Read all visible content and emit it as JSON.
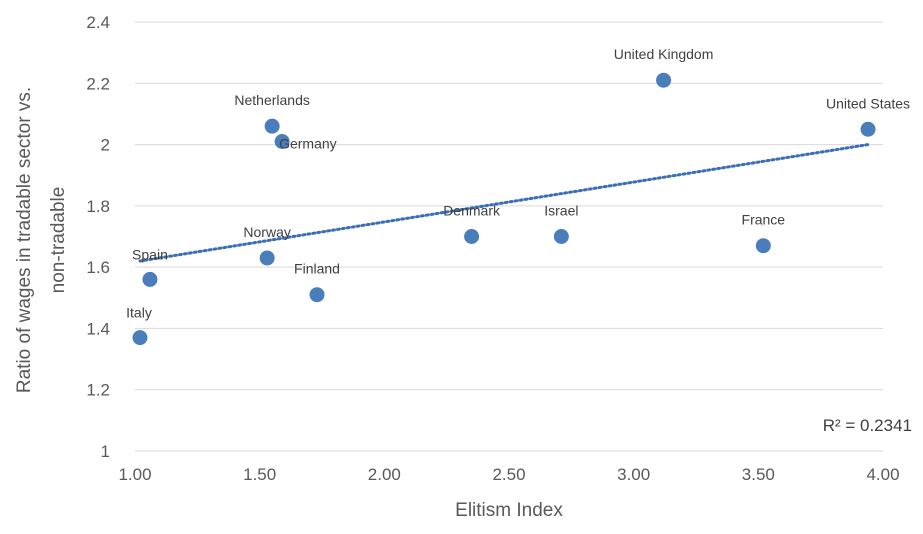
{
  "chart_data": {
    "type": "scatter",
    "xlabel": "Elitism Index",
    "ylabel": [
      "Ratio of wages in tradable sector vs.",
      "non-tradable"
    ],
    "xlim": [
      1.0,
      4.0
    ],
    "ylim": [
      1.0,
      2.4
    ],
    "xticks": [
      1.0,
      1.5,
      2.0,
      2.5,
      3.0,
      3.5,
      4.0
    ],
    "xtick_labels": [
      "1.00",
      "1.50",
      "2.00",
      "2.50",
      "3.00",
      "3.50",
      "4.00"
    ],
    "yticks": [
      1.0,
      1.2,
      1.4,
      1.6,
      1.8,
      2.0,
      2.2,
      2.4
    ],
    "ytick_labels": [
      "1",
      "1.2",
      "1.4",
      "1.6",
      "1.8",
      "2",
      "2.2",
      "2.4"
    ],
    "grid": "horizontal",
    "points": [
      {
        "label": "Italy",
        "x": 1.02,
        "y": 1.37
      },
      {
        "label": "Spain",
        "x": 1.06,
        "y": 1.56
      },
      {
        "label": "Norway",
        "x": 1.53,
        "y": 1.63
      },
      {
        "label": "Netherlands",
        "x": 1.55,
        "y": 2.06
      },
      {
        "label": "Germany",
        "x": 1.59,
        "y": 2.01
      },
      {
        "label": "Finland",
        "x": 1.73,
        "y": 1.51
      },
      {
        "label": "Denmark",
        "x": 2.35,
        "y": 1.7
      },
      {
        "label": "Israel",
        "x": 2.71,
        "y": 1.7
      },
      {
        "label": "United Kingdom",
        "x": 3.12,
        "y": 2.21
      },
      {
        "label": "France",
        "x": 3.52,
        "y": 1.67
      },
      {
        "label": "United States",
        "x": 3.94,
        "y": 2.05
      }
    ],
    "trendline": {
      "type": "linear",
      "start": {
        "x": 1.02,
        "y": 1.62
      },
      "end": {
        "x": 3.94,
        "y": 2.0
      }
    },
    "annotation": "R² = 0.2341",
    "colors": {
      "point": "#4a7ebb",
      "trend": "#3a6fb5",
      "grid": "#d9d9d9",
      "text": "#595959"
    }
  }
}
